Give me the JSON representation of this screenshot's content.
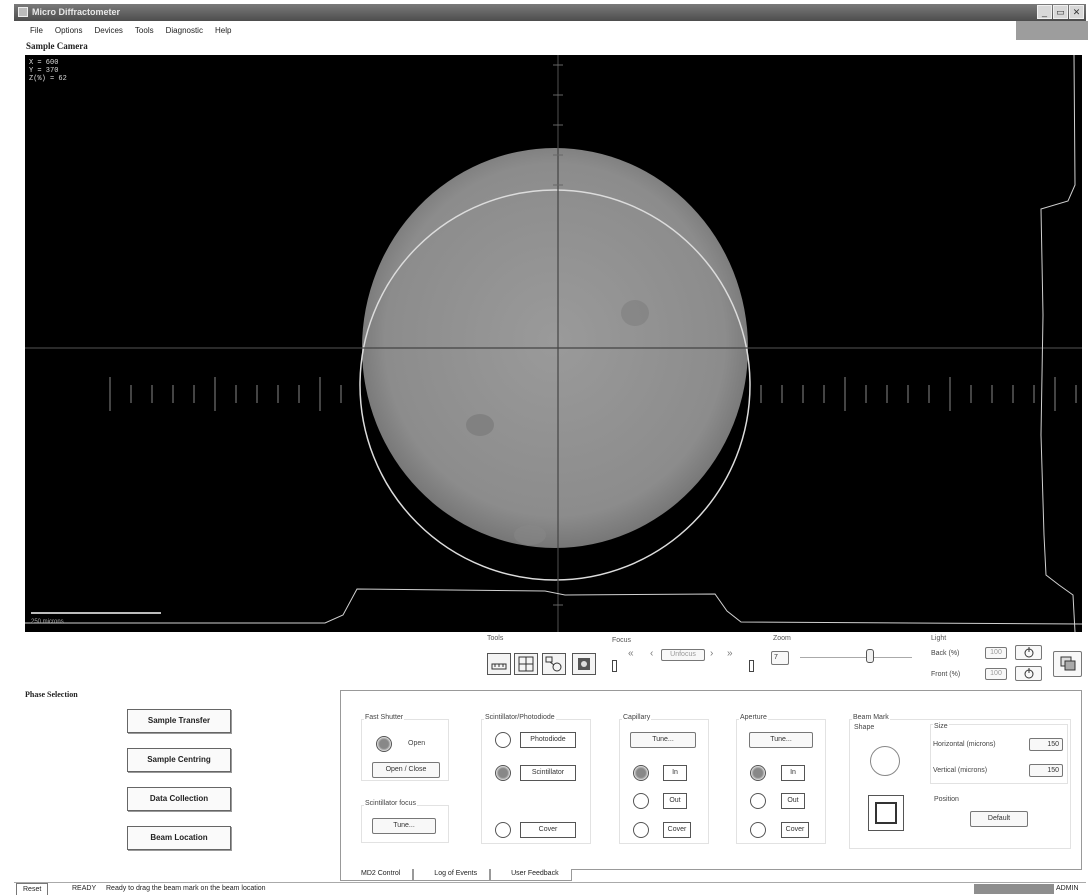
{
  "window": {
    "title": "Micro Diffractometer",
    "buttons": [
      "_",
      "▭",
      "✕"
    ]
  },
  "menu": [
    "File",
    "Options",
    "Devices",
    "Tools",
    "Diagnostic",
    "Help"
  ],
  "camera": {
    "label": "Sample Camera",
    "coords": [
      "X   =  600",
      "Y   =  370",
      "Z(%) =  62"
    ],
    "scale_label": "250 microns"
  },
  "toolbar": {
    "tools_label": "Tools",
    "tool_icons": [
      "ruler-icon",
      "crosshair-icon",
      "measure-icon",
      "camera-icon"
    ],
    "focus_label": "Focus",
    "focus_value": "Unfocus",
    "zoom_label": "Zoom",
    "zoom_value": "7",
    "light_label": "Light",
    "back_label": "Back (%)",
    "back_value": "100",
    "front_label": "Front (%)",
    "front_value": "100"
  },
  "phase": {
    "label": "Phase Selection",
    "buttons": [
      "Sample Transfer",
      "Sample Centring",
      "Data Collection",
      "Beam Location"
    ]
  },
  "fast_shutter": {
    "title": "Fast Shutter",
    "status": "Open",
    "button": "Open / Close"
  },
  "scintillator_focus": {
    "title": "Scintillator focus",
    "button": "Tune..."
  },
  "scint_photo": {
    "title": "Scintillator/Photodiode",
    "options": [
      "Photodiode",
      "Scintillator",
      "Cover"
    ]
  },
  "capillary": {
    "title": "Capillary",
    "tune": "Tune...",
    "options": [
      "In",
      "Out",
      "Cover"
    ]
  },
  "aperture": {
    "title": "Aperture",
    "tune": "Tune...",
    "options": [
      "In",
      "Out",
      "Cover"
    ]
  },
  "beam_mark": {
    "title": "Beam Mark",
    "shape_label": "Shape",
    "size_label": "Size",
    "horizontal_label": "Horizontal (microns)",
    "horizontal_value": "150",
    "vertical_label": "Vertical (microns)",
    "vertical_value": "150",
    "position_label": "Position",
    "default_button": "Default"
  },
  "tabs": [
    "MD2 Control",
    "Log of Events",
    "User Feedback"
  ],
  "status": {
    "reset": "Reset",
    "state": "READY",
    "message": "Ready to drag the beam mark on the beam location",
    "user": "ADMIN"
  }
}
